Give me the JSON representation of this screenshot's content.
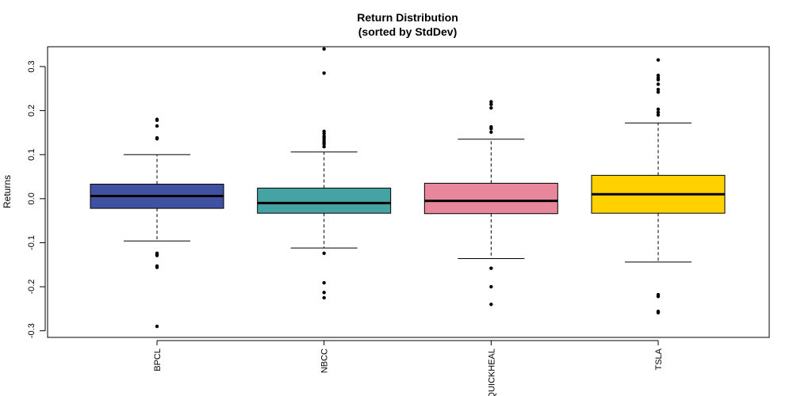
{
  "chart_data": {
    "type": "boxplot",
    "title": "Return Distribution",
    "subtitle": "(sorted by StdDev)",
    "xlabel": "",
    "ylabel": "Returns",
    "ylim": [
      -0.315,
      0.345
    ],
    "y_ticks": [
      -0.3,
      -0.2,
      -0.1,
      0.0,
      0.1,
      0.2,
      0.3
    ],
    "y_tick_labels": [
      "-0.3",
      "-0.2",
      "-0.1",
      "0.0",
      "0.1",
      "0.2",
      "0.3"
    ],
    "grid": false,
    "legend": "none",
    "categories": [
      "BPCL",
      "NBCC",
      "QUICKHEAL",
      "TSLA"
    ],
    "boxes": [
      {
        "name": "BPCL",
        "color": "#3F51A0",
        "whisker_low": -0.096,
        "q1": -0.022,
        "median": 0.006,
        "q3": 0.033,
        "whisker_high": 0.1,
        "outliers": [
          0.18,
          0.178,
          0.165,
          0.138,
          0.136,
          -0.124,
          -0.126,
          -0.129,
          -0.153,
          -0.156,
          -0.29
        ]
      },
      {
        "name": "NBCC",
        "color": "#45A3A3",
        "whisker_low": -0.112,
        "q1": -0.033,
        "median": -0.01,
        "q3": 0.024,
        "whisker_high": 0.106,
        "outliers": [
          0.34,
          0.285,
          0.153,
          0.148,
          0.142,
          0.138,
          0.133,
          0.128,
          0.124,
          0.118,
          -0.124,
          -0.191,
          -0.213,
          -0.225
        ]
      },
      {
        "name": "QUICKHEAL",
        "color": "#E8879C",
        "whisker_low": -0.136,
        "q1": -0.034,
        "median": -0.005,
        "q3": 0.035,
        "whisker_high": 0.135,
        "outliers": [
          0.22,
          0.214,
          0.206,
          0.163,
          0.159,
          0.151,
          -0.158,
          -0.2,
          -0.24
        ]
      },
      {
        "name": "TSLA",
        "color": "#FFD100",
        "whisker_low": -0.144,
        "q1": -0.033,
        "median": 0.01,
        "q3": 0.053,
        "whisker_high": 0.172,
        "outliers": [
          0.315,
          0.28,
          0.274,
          0.27,
          0.26,
          0.248,
          0.242,
          0.203,
          0.196,
          0.19,
          -0.218,
          -0.222,
          -0.256,
          -0.259
        ]
      }
    ]
  }
}
